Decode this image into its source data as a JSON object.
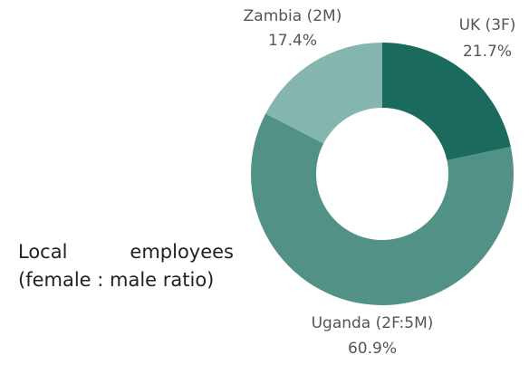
{
  "chart_data": {
    "type": "donut",
    "title": [
      "Local employees",
      "(female : male ratio)"
    ],
    "categories": [
      "UK (3F)",
      "Uganda (2F:5M)",
      "Zambia (2M)"
    ],
    "values": [
      21.7,
      60.9,
      17.4
    ],
    "value_labels": [
      "21.7%",
      "60.9%",
      "17.4%"
    ],
    "colors": [
      "#1a6b5e",
      "#529185",
      "#85b5af"
    ]
  }
}
